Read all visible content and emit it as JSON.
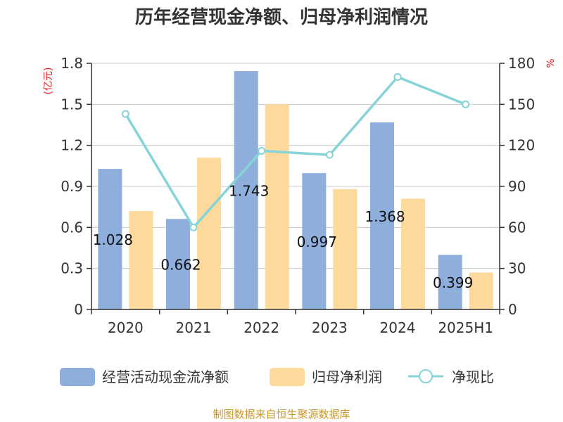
{
  "title": "历年经营现金净额、归母净利润情况",
  "source": "制图数据来自恒生聚源数据库",
  "chart_data": {
    "type": "bar",
    "categories": [
      "2020",
      "2021",
      "2022",
      "2023",
      "2024",
      "2025H1"
    ],
    "series": [
      {
        "name": "经营活动现金流净额",
        "kind": "bar",
        "axis": "left",
        "color": "#8eaedb",
        "values": [
          1.028,
          0.662,
          1.743,
          0.997,
          1.368,
          0.399
        ],
        "labels": [
          "1.028",
          "0.662",
          "1.743",
          "0.997",
          "1.368",
          "0.399"
        ]
      },
      {
        "name": "归母净利润",
        "kind": "bar",
        "axis": "left",
        "color": "#fdd99b",
        "values": [
          0.72,
          1.11,
          1.5,
          0.88,
          0.81,
          0.27
        ]
      },
      {
        "name": "净现比",
        "kind": "line",
        "axis": "right",
        "color": "#86d3d8",
        "values": [
          143,
          60,
          116,
          113,
          170,
          150
        ]
      }
    ],
    "y_left": {
      "label": "(亿元)",
      "min": 0,
      "max": 1.8,
      "ticks": [
        "0",
        "0.3",
        "0.6",
        "0.9",
        "1.2",
        "1.5",
        "1.8"
      ]
    },
    "y_right": {
      "label": "%",
      "min": 0,
      "max": 180,
      "ticks": [
        "0",
        "30",
        "60",
        "90",
        "120",
        "150",
        "180"
      ]
    },
    "grid": true,
    "legend_position": "bottom"
  }
}
